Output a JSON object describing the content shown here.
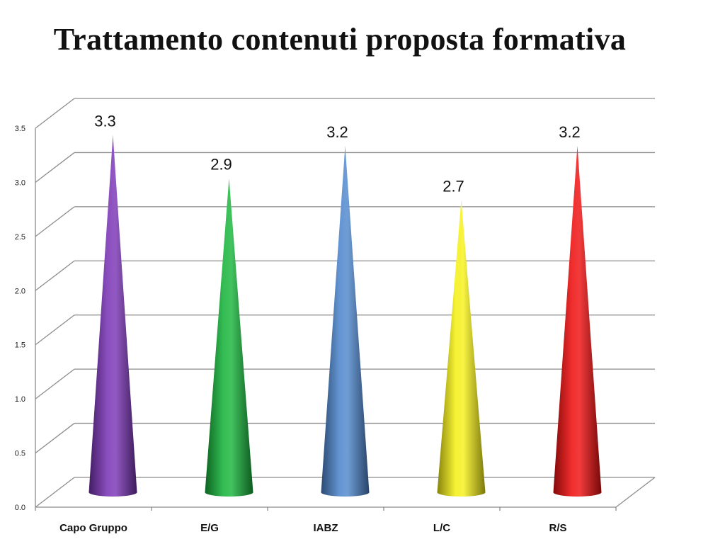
{
  "title": "Trattamento contenuti proposta formativa",
  "chart_data": {
    "type": "bar",
    "shape": "cone",
    "categories": [
      "Capo Gruppo",
      "E/G",
      "IABZ",
      "L/C",
      "R/S"
    ],
    "values": [
      3.3,
      2.9,
      3.2,
      2.7,
      3.2
    ],
    "data_labels": [
      "3.3",
      "2.9",
      "3.2",
      "2.7",
      "3.2"
    ],
    "colors": [
      "#7a35b5",
      "#18b43c",
      "#4f87cd",
      "#f5f018",
      "#ee1010"
    ],
    "ylim": [
      0,
      3.5
    ],
    "yticks": [
      "0.0",
      "0.5",
      "1.0",
      "1.5",
      "2.0",
      "2.5",
      "3.0",
      "3.5"
    ],
    "grid": true,
    "legend": false
  }
}
